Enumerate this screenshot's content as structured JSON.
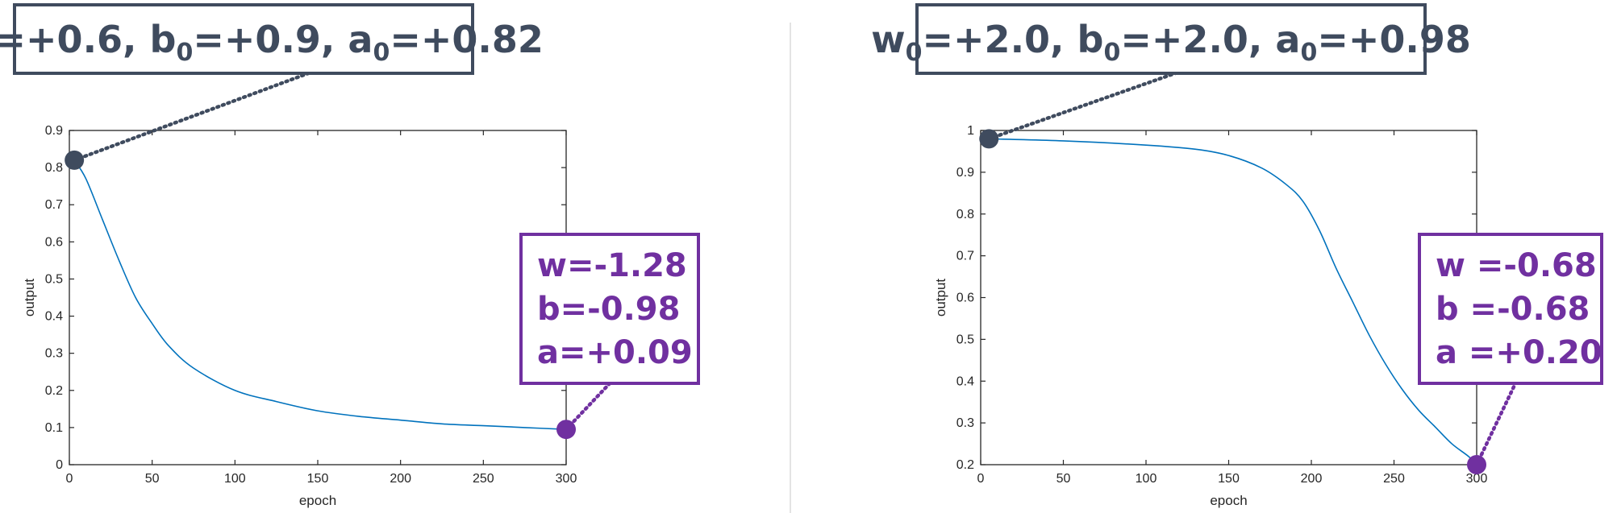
{
  "chart_data": [
    {
      "type": "line",
      "xlabel": "epoch",
      "ylabel": "output",
      "xlim": [
        0,
        300
      ],
      "ylim": [
        0,
        0.9
      ],
      "xticks": [
        0,
        50,
        100,
        150,
        200,
        250,
        300
      ],
      "xtick_labels": [
        "0",
        "50",
        "100",
        "150",
        "200",
        "250",
        "300"
      ],
      "yticks": [
        0,
        0.1,
        0.2,
        0.3,
        0.4,
        0.5,
        0.6,
        0.7,
        0.8,
        0.9
      ],
      "ytick_labels": [
        "0",
        "0.1",
        "0.2",
        "0.3",
        "0.4",
        "0.5",
        "0.6",
        "0.7",
        "0.8",
        "0.9"
      ],
      "grid": false,
      "line_color": "#0072bd",
      "series": [
        {
          "x": [
            3,
            10,
            20,
            30,
            40,
            50,
            60,
            75,
            100,
            125,
            150,
            175,
            200,
            225,
            250,
            275,
            300
          ],
          "values": [
            0.82,
            0.77,
            0.66,
            0.55,
            0.45,
            0.38,
            0.32,
            0.26,
            0.2,
            0.17,
            0.145,
            0.13,
            0.12,
            0.11,
            0.105,
            0.1,
            0.095
          ]
        }
      ],
      "start_point": {
        "x": 3,
        "y": 0.82,
        "color": "#3f4b5e"
      },
      "end_point": {
        "x": 300,
        "y": 0.095,
        "color": "#7030a0"
      },
      "initial_label": {
        "w": "+0.6",
        "b": "+0.9",
        "a": "+0.82"
      },
      "final_label": [
        "w=-1.28",
        "b=-0.98",
        "a=+0.09"
      ]
    },
    {
      "type": "line",
      "xlabel": "epoch",
      "ylabel": "output",
      "xlim": [
        0,
        300
      ],
      "ylim": [
        0.2,
        1
      ],
      "xticks": [
        0,
        50,
        100,
        150,
        200,
        250,
        300
      ],
      "xtick_labels": [
        "0",
        "50",
        "100",
        "150",
        "200",
        "250",
        "300"
      ],
      "yticks": [
        0.2,
        0.3,
        0.4,
        0.5,
        0.6,
        0.7,
        0.8,
        0.9,
        1
      ],
      "ytick_labels": [
        "0.2",
        "0.3",
        "0.4",
        "0.5",
        "0.6",
        "0.7",
        "0.8",
        "0.9",
        "1"
      ],
      "grid": false,
      "line_color": "#0072bd",
      "series": [
        {
          "x": [
            5,
            50,
            100,
            130,
            150,
            170,
            185,
            195,
            205,
            215,
            225,
            235,
            245,
            255,
            265,
            275,
            285,
            295,
            300
          ],
          "values": [
            0.98,
            0.975,
            0.965,
            0.955,
            0.94,
            0.91,
            0.87,
            0.83,
            0.76,
            0.67,
            0.59,
            0.51,
            0.44,
            0.38,
            0.33,
            0.29,
            0.25,
            0.22,
            0.2
          ]
        }
      ],
      "start_point": {
        "x": 5,
        "y": 0.98,
        "color": "#3f4b5e"
      },
      "end_point": {
        "x": 300,
        "y": 0.2,
        "color": "#7030a0"
      },
      "initial_label": {
        "w": "+2.0",
        "b": "+2.0",
        "a": "+0.98"
      },
      "final_label": [
        "w =-0.68",
        "b =-0.68",
        "a =+0.20"
      ]
    }
  ]
}
